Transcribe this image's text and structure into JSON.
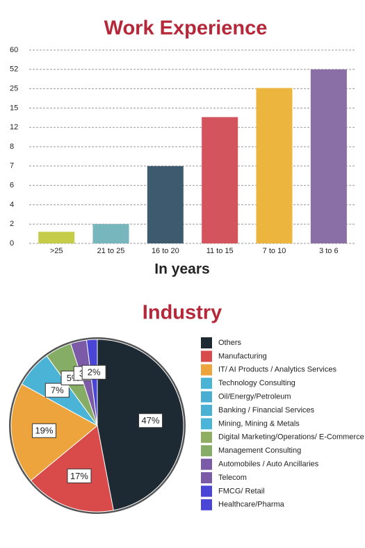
{
  "chart_data": [
    {
      "type": "bar",
      "title": "Work Experience",
      "x_label": "In years",
      "categories": [
        ">25",
        "21 to 25",
        "16 to 20",
        "11 to 15",
        "7 to 10",
        "3 to 6"
      ],
      "values": [
        1.2,
        2,
        7,
        13.6,
        26,
        52
      ],
      "colors": [
        "#c5cd48",
        "#78b6bd",
        "#3d5a6e",
        "#d4545d",
        "#ecb63e",
        "#8a6ea6"
      ],
      "ylim": [
        0,
        60
      ],
      "yticks": [
        0,
        2,
        4,
        6,
        7,
        8,
        12,
        15,
        25,
        52,
        60
      ],
      "grid": true
    },
    {
      "type": "pie",
      "title": "Industry",
      "categories": [
        "Others",
        "Manufacturing",
        "IT/ AI Products / Analytics Services",
        "Technology Consulting",
        "Oil/Energy/Petroleum",
        "Banking / Financial Services",
        "Mining, Mining & Metals",
        "Digital Marketing/Operations/ E-Commerce",
        "Management Consulting",
        "Automobiles / Auto Ancillaries",
        "Telecom",
        "FMCG/ Retail",
        "Healthcare/Pharma"
      ],
      "values": [
        47,
        17,
        19,
        7,
        null,
        null,
        null,
        null,
        5,
        null,
        3,
        2,
        null
      ],
      "value_labels": [
        "47%",
        "17%",
        "19%",
        "7%",
        null,
        null,
        null,
        null,
        "5%",
        null,
        "3%",
        "2%",
        null
      ],
      "colors": [
        "#1e2a33",
        "#d94a4a",
        "#eea43c",
        "#4ab3d6",
        "#4aaed3",
        "#4ab1d4",
        "#4ab5d8",
        "#8fae62",
        "#86ad66",
        "#7b5aa8",
        "#7b5aa8",
        "#4a45d6",
        "#4a45d6"
      ]
    }
  ]
}
